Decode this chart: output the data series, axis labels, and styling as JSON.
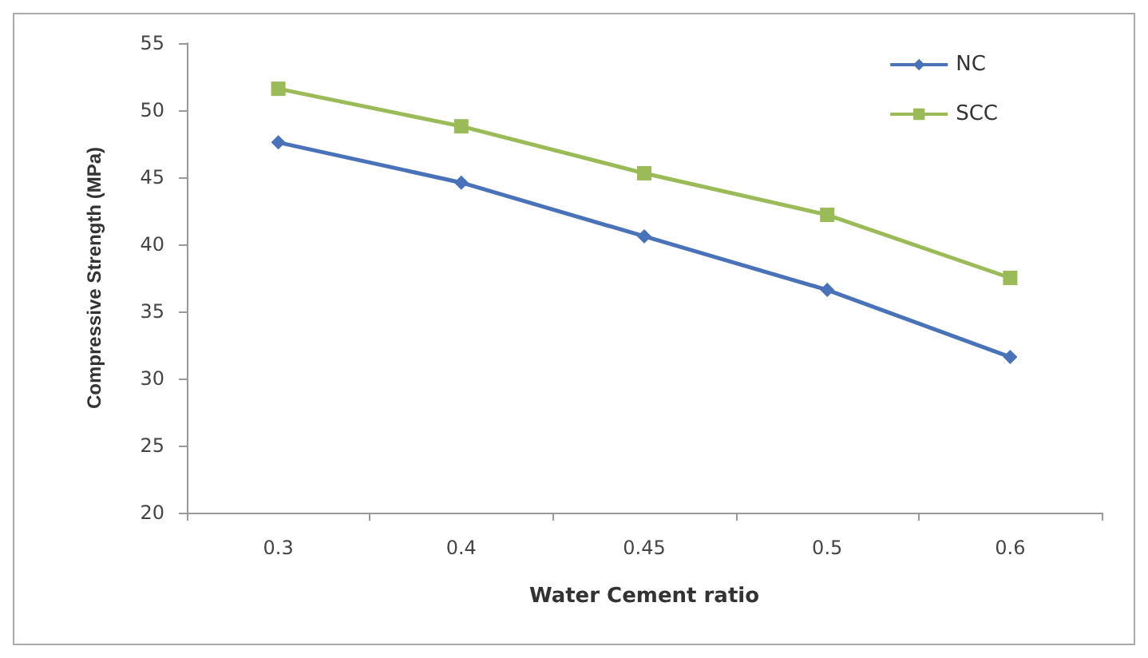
{
  "chart_data": {
    "type": "line",
    "xlabel": "Water Cement ratio",
    "ylabel": "Compressive Strength (MPa)",
    "categories": [
      "0.3",
      "0.4",
      "0.45",
      "0.5",
      "0.6"
    ],
    "series": [
      {
        "name": "NC",
        "color": "#4a72b8",
        "marker": "diamond",
        "values": [
          47.6,
          44.6,
          40.6,
          36.6,
          31.6
        ]
      },
      {
        "name": "SCC",
        "color": "#9bbb59",
        "marker": "square",
        "values": [
          51.6,
          48.8,
          45.3,
          42.2,
          37.5
        ]
      }
    ],
    "ylim": [
      20,
      55
    ],
    "yticks": [
      20,
      25,
      30,
      35,
      40,
      45,
      50,
      55
    ],
    "grid": false,
    "legend": "top right",
    "line_style": "solid"
  }
}
